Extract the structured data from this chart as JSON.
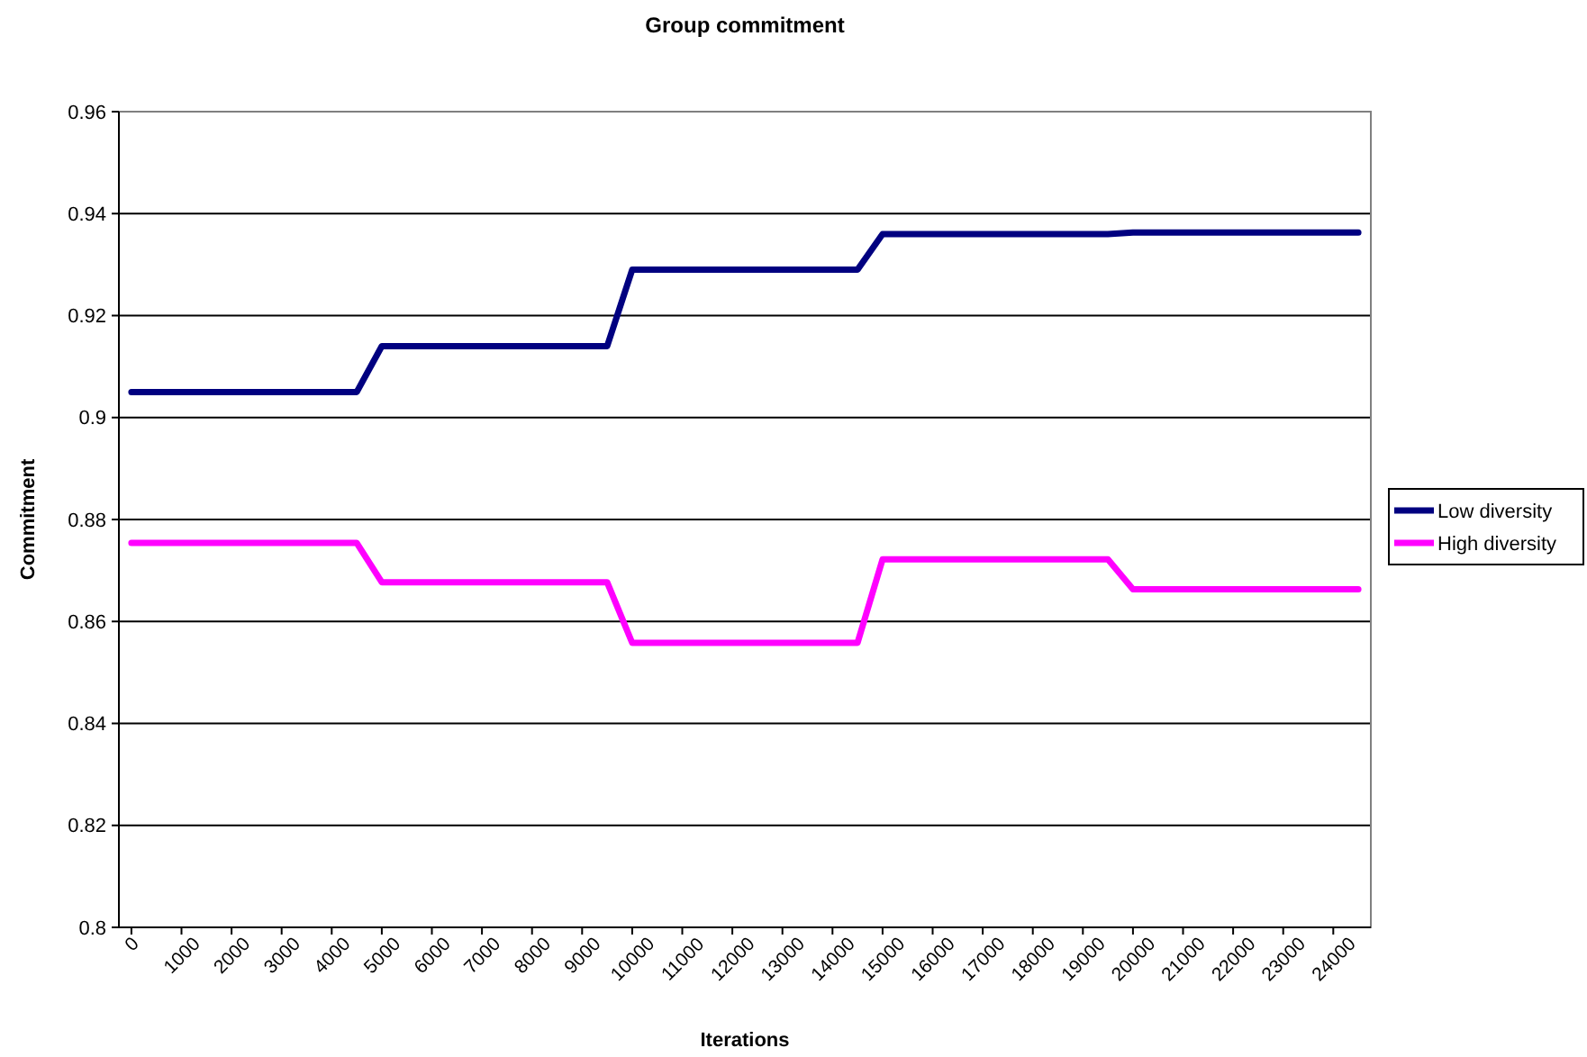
{
  "chart_data": {
    "type": "line",
    "title": "Group commitment",
    "xlabel": "Iterations",
    "ylabel": "Commitment",
    "xlim": [
      -250,
      24750
    ],
    "ylim": [
      0.8,
      0.96
    ],
    "xticks": [
      0,
      1000,
      2000,
      3000,
      4000,
      5000,
      6000,
      7000,
      8000,
      9000,
      10000,
      11000,
      12000,
      13000,
      14000,
      15000,
      16000,
      17000,
      18000,
      19000,
      20000,
      21000,
      22000,
      23000,
      24000
    ],
    "yticks": [
      0.8,
      0.82,
      0.84,
      0.86,
      0.88,
      0.9,
      0.92,
      0.94,
      0.96
    ],
    "grid": "y",
    "legend": "right",
    "marker": "none",
    "line_style": "solid",
    "series": [
      {
        "name": "Low diversity",
        "color": "#000080",
        "x": [
          0,
          4500,
          5000,
          9500,
          10000,
          14500,
          15000,
          19500,
          20000,
          24500
        ],
        "values": [
          0.905,
          0.905,
          0.914,
          0.914,
          0.929,
          0.929,
          0.936,
          0.936,
          0.9363,
          0.9363
        ]
      },
      {
        "name": "High diversity",
        "color": "#ff00ff",
        "x": [
          0,
          4500,
          5000,
          9500,
          10000,
          14500,
          15000,
          19500,
          20000,
          24500
        ],
        "values": [
          0.8754,
          0.8754,
          0.8677,
          0.8677,
          0.8558,
          0.8558,
          0.8722,
          0.8722,
          0.8663,
          0.8663
        ]
      }
    ]
  }
}
